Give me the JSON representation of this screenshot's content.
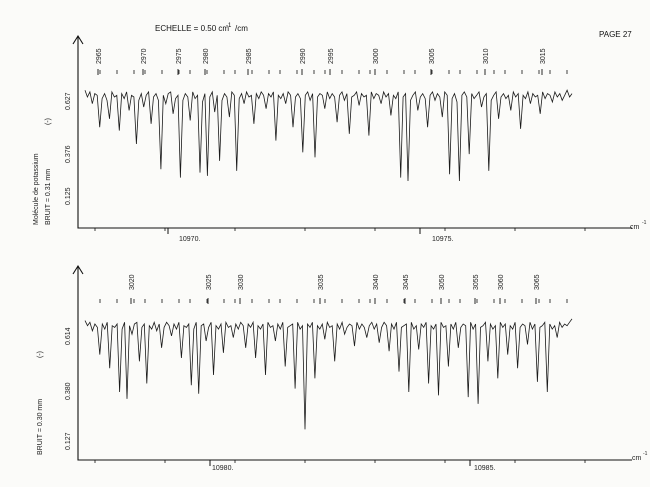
{
  "header": {
    "scale_label": "ECHELLE = 0.50 cm",
    "scale_exponent": "-1",
    "scale_unit": "/cm",
    "page_label": "PAGE 27"
  },
  "chart_data": [
    {
      "type": "line",
      "panel": "upper",
      "ylabel": "Molécule de potassium",
      "noise_label": "BRUIT = 0.31 mm",
      "yunit": "(-)",
      "ytick_labels": [
        "0.627",
        "0.376",
        "0.125"
      ],
      "x_unit": "cm",
      "x_unit_exp": "-1",
      "x_tick_labels": [
        "10970.",
        "10975."
      ],
      "line_numbers": [
        "2965",
        "2970",
        "2975",
        "2980",
        "2985",
        "2990",
        "2995",
        "3000",
        "3005",
        "3010",
        "3015"
      ],
      "series": [
        {
          "values": [
            0.82,
            0.78,
            0.81,
            0.74,
            0.8,
            0.79,
            0.6,
            0.77,
            0.8,
            0.76,
            0.65,
            0.81,
            0.78,
            0.79,
            0.58,
            0.8,
            0.77,
            0.81,
            0.7,
            0.79,
            0.78,
            0.5,
            0.76,
            0.8,
            0.72,
            0.79,
            0.81,
            0.62,
            0.78,
            0.8,
            0.76,
            0.35,
            0.79,
            0.74,
            0.8,
            0.81,
            0.68,
            0.77,
            0.79,
            0.3,
            0.76,
            0.8,
            0.78,
            0.64,
            0.81,
            0.77,
            0.79,
            0.33,
            0.75,
            0.8,
            0.31,
            0.78,
            0.81,
            0.69,
            0.79,
            0.4,
            0.76,
            0.8,
            0.78,
            0.66,
            0.81,
            0.79,
            0.34,
            0.77,
            0.8,
            0.74,
            0.81,
            0.78,
            0.79,
            0.62,
            0.8,
            0.77,
            0.81,
            0.79,
            0.71,
            0.8,
            0.78,
            0.81,
            0.52,
            0.79,
            0.77,
            0.8,
            0.74,
            0.81,
            0.79,
            0.6,
            0.78,
            0.8,
            0.77,
            0.45,
            0.79,
            0.81,
            0.76,
            0.8,
            0.42,
            0.78,
            0.8,
            0.79,
            0.71,
            0.81,
            0.77,
            0.8,
            0.78,
            0.63,
            0.79,
            0.81,
            0.76,
            0.8,
            0.56,
            0.78,
            0.79,
            0.81,
            0.73,
            0.8,
            0.78,
            0.79,
            0.55,
            0.81,
            0.77,
            0.8,
            0.79,
            0.74,
            0.81,
            0.78,
            0.8,
            0.67,
            0.79,
            0.77,
            0.81,
            0.3,
            0.78,
            0.8,
            0.28,
            0.76,
            0.79,
            0.81,
            0.7,
            0.78,
            0.8,
            0.77,
            0.6,
            0.79,
            0.81,
            0.76,
            0.8,
            0.78,
            0.66,
            0.81,
            0.79,
            0.32,
            0.77,
            0.8,
            0.75,
            0.28,
            0.79,
            0.81,
            0.78,
            0.44,
            0.8,
            0.77,
            0.79,
            0.81,
            0.72,
            0.78,
            0.8,
            0.34,
            0.76,
            0.79,
            0.81,
            0.65,
            0.78,
            0.8,
            0.77,
            0.79,
            0.7,
            0.81,
            0.78,
            0.8,
            0.59,
            0.79,
            0.77,
            0.81,
            0.74,
            0.8,
            0.78,
            0.79,
            0.68,
            0.81,
            0.77,
            0.8,
            0.79,
            0.75,
            0.81,
            0.78,
            0.8,
            0.76,
            0.79,
            0.82,
            0.78,
            0.8
          ]
        }
      ]
    },
    {
      "type": "line",
      "panel": "lower",
      "noise_label": "BRUIT = 0.30 mm",
      "yunit": "(-)",
      "ytick_labels": [
        "0.614",
        "0.380",
        "0.127"
      ],
      "x_unit": "cm",
      "x_unit_exp": "-1",
      "x_tick_labels": [
        "10980.",
        "10985."
      ],
      "line_numbers": [
        "3020",
        "3025",
        "3030",
        "3035",
        "3040",
        "3045",
        "3050",
        "3055",
        "3060",
        "3065"
      ],
      "series": [
        {
          "values": [
            0.82,
            0.79,
            0.81,
            0.76,
            0.8,
            0.78,
            0.62,
            0.8,
            0.77,
            0.81,
            0.54,
            0.79,
            0.78,
            0.8,
            0.4,
            0.77,
            0.81,
            0.36,
            0.79,
            0.74,
            0.8,
            0.81,
            0.58,
            0.78,
            0.8,
            0.45,
            0.79,
            0.77,
            0.81,
            0.76,
            0.8,
            0.66,
            0.78,
            0.81,
            0.79,
            0.73,
            0.8,
            0.77,
            0.81,
            0.6,
            0.79,
            0.78,
            0.8,
            0.44,
            0.77,
            0.81,
            0.39,
            0.79,
            0.8,
            0.7,
            0.78,
            0.81,
            0.5,
            0.79,
            0.77,
            0.8,
            0.63,
            0.81,
            0.78,
            0.79,
            0.72,
            0.8,
            0.77,
            0.81,
            0.79,
            0.66,
            0.8,
            0.78,
            0.81,
            0.6,
            0.79,
            0.77,
            0.8,
            0.5,
            0.81,
            0.78,
            0.79,
            0.7,
            0.8,
            0.77,
            0.81,
            0.55,
            0.78,
            0.79,
            0.8,
            0.42,
            0.81,
            0.77,
            0.79,
            0.18,
            0.8,
            0.78,
            0.81,
            0.48,
            0.79,
            0.77,
            0.8,
            0.71,
            0.81,
            0.78,
            0.79,
            0.58,
            0.8,
            0.77,
            0.81,
            0.74,
            0.78,
            0.8,
            0.79,
            0.67,
            0.81,
            0.77,
            0.8,
            0.78,
            0.72,
            0.79,
            0.81,
            0.77,
            0.8,
            0.69,
            0.78,
            0.81,
            0.79,
            0.64,
            0.8,
            0.77,
            0.81,
            0.52,
            0.78,
            0.79,
            0.8,
            0.4,
            0.81,
            0.77,
            0.79,
            0.65,
            0.8,
            0.78,
            0.81,
            0.45,
            0.79,
            0.77,
            0.8,
            0.38,
            0.81,
            0.78,
            0.79,
            0.55,
            0.8,
            0.77,
            0.81,
            0.66,
            0.78,
            0.8,
            0.79,
            0.37,
            0.81,
            0.77,
            0.8,
            0.33,
            0.78,
            0.79,
            0.81,
            0.58,
            0.8,
            0.77,
            0.79,
            0.48,
            0.81,
            0.78,
            0.8,
            0.62,
            0.79,
            0.77,
            0.81,
            0.54,
            0.78,
            0.8,
            0.79,
            0.68,
            0.81,
            0.77,
            0.8,
            0.46,
            0.78,
            0.79,
            0.81,
            0.4,
            0.8,
            0.77,
            0.79,
            0.72,
            0.81,
            0.78,
            0.8,
            0.79,
            0.81,
            0.83
          ]
        }
      ]
    }
  ]
}
